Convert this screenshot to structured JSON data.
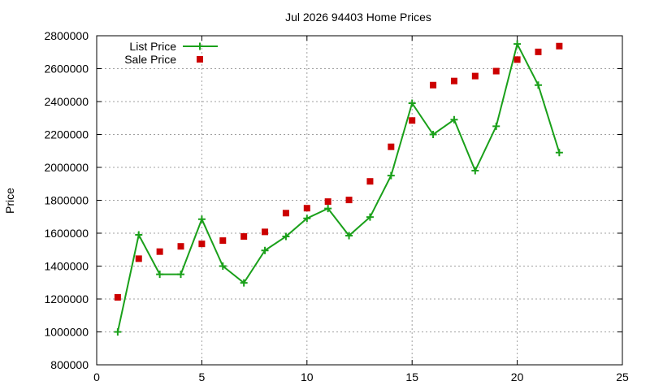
{
  "chart_data": {
    "type": "line",
    "title": "Jul 2026 94403 Home Prices",
    "xlabel": "",
    "ylabel": "Price",
    "xlim": [
      0,
      25
    ],
    "ylim": [
      800000,
      2800000
    ],
    "x_ticks": [
      0,
      5,
      10,
      15,
      20,
      25
    ],
    "y_ticks": [
      800000,
      1000000,
      1200000,
      1400000,
      1600000,
      1800000,
      2000000,
      2200000,
      2400000,
      2600000,
      2800000
    ],
    "grid": true,
    "legend_position": "top-left",
    "series": [
      {
        "name": "List Price",
        "mark": "line-plus",
        "color": "#1aa01a",
        "x": [
          1,
          2,
          3,
          4,
          5,
          6,
          7,
          8,
          9,
          10,
          11,
          12,
          13,
          14,
          15,
          16,
          17,
          18,
          19,
          20,
          21,
          22
        ],
        "values": [
          1000000,
          1590000,
          1350000,
          1350000,
          1685000,
          1400000,
          1298000,
          1495000,
          1580000,
          1690000,
          1750000,
          1585000,
          1698000,
          1950000,
          2390000,
          2200000,
          2290000,
          1980000,
          2250000,
          2750000,
          2500000,
          2090000
        ]
      },
      {
        "name": "Sale Price",
        "mark": "square",
        "color": "#cc0000",
        "x": [
          1,
          2,
          3,
          4,
          5,
          6,
          7,
          8,
          9,
          10,
          11,
          12,
          13,
          14,
          15,
          16,
          17,
          18,
          19,
          20,
          21,
          22
        ],
        "values": [
          1210000,
          1445000,
          1488000,
          1520000,
          1535000,
          1555000,
          1580000,
          1608000,
          1722000,
          1752000,
          1792000,
          1802000,
          1915000,
          2125000,
          2285000,
          2500000,
          2525000,
          2555000,
          2585000,
          2655000,
          2702000,
          2737000
        ]
      }
    ]
  }
}
